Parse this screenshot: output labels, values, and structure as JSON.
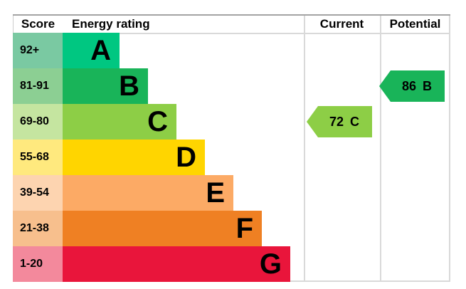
{
  "header": {
    "score": "Score",
    "energy_rating": "Energy rating",
    "current": "Current",
    "potential": "Potential"
  },
  "colors": {
    "background": "#ffffff",
    "text": "#000000",
    "grid_line": "#d9d9d9",
    "top_border": "#a3a3a3"
  },
  "chart_data": {
    "type": "epc_energy_rating_chart",
    "title": "Energy rating",
    "columns": [
      "Score",
      "Energy rating",
      "Current",
      "Potential"
    ],
    "bands": [
      {
        "grade": "A",
        "score_range": "92+",
        "bar_color": "#00c781",
        "cell_color": "#7ac9a2"
      },
      {
        "grade": "B",
        "score_range": "81-91",
        "bar_color": "#19b459",
        "cell_color": "#8ccf93"
      },
      {
        "grade": "C",
        "score_range": "69-80",
        "bar_color": "#8dce46",
        "cell_color": "#c5e5a0"
      },
      {
        "grade": "D",
        "score_range": "55-68",
        "bar_color": "#ffd500",
        "cell_color": "#ffe97e"
      },
      {
        "grade": "E",
        "score_range": "39-54",
        "bar_color": "#fcaa65",
        "cell_color": "#fdd4b0"
      },
      {
        "grade": "F",
        "score_range": "21-38",
        "bar_color": "#ef8023",
        "cell_color": "#f7bf8d"
      },
      {
        "grade": "G",
        "score_range": "1-20",
        "bar_color": "#e9153b",
        "cell_color": "#f3899c"
      }
    ],
    "markers": {
      "current": {
        "value": "72",
        "grade": "C",
        "color": "#8dce46",
        "band_index": 2
      },
      "potential": {
        "value": "86",
        "grade": "B",
        "color": "#19b459",
        "band_index": 1
      }
    },
    "layout_hints": {
      "bar_length_rank": "bars lengthen from A (shortest) to G (longest)",
      "legend": "none",
      "grid": "column dividers only"
    }
  }
}
